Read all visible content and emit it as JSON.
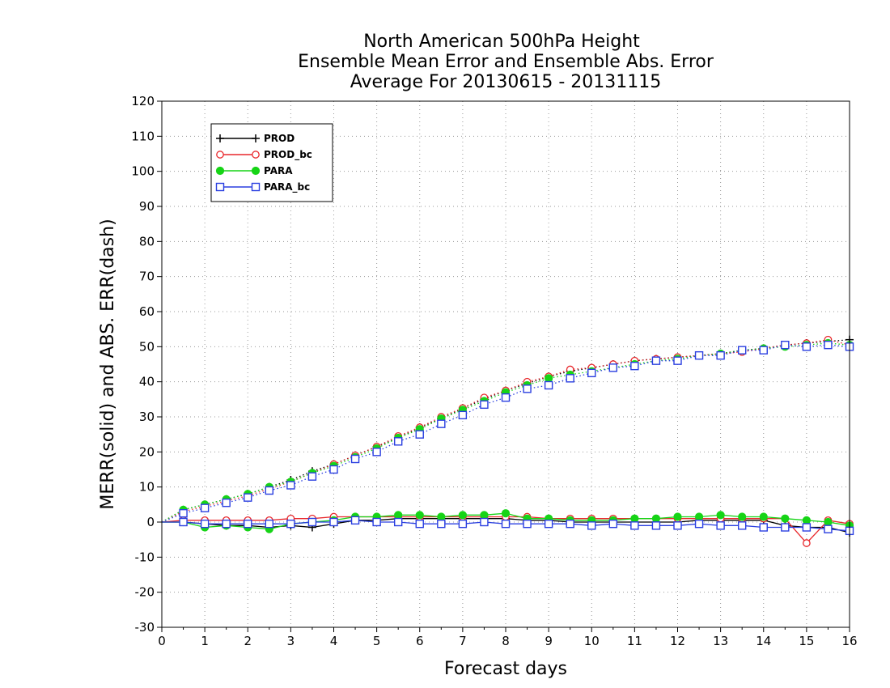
{
  "chart_data": {
    "type": "line",
    "title_lines": [
      "North American 500hPa Height",
      "Ensemble Mean Error and Ensemble Abs. Error",
      "Average For 20130615 - 20131115"
    ],
    "xlabel": "Forecast days",
    "ylabel": "MERR(solid) and ABS. ERR(dash)",
    "xlim": [
      0,
      16
    ],
    "ylim": [
      -30,
      120
    ],
    "xticks": [
      0,
      1,
      2,
      3,
      4,
      5,
      6,
      7,
      8,
      9,
      10,
      11,
      12,
      13,
      14,
      15,
      16
    ],
    "yticks": [
      -30,
      -20,
      -10,
      0,
      10,
      20,
      30,
      40,
      50,
      60,
      70,
      80,
      90,
      100,
      110,
      120
    ],
    "grid": true,
    "legend_position": "top-left",
    "x": [
      0,
      0.5,
      1,
      1.5,
      2,
      2.5,
      3,
      3.5,
      4,
      4.5,
      5,
      5.5,
      6,
      6.5,
      7,
      7.5,
      8,
      8.5,
      9,
      9.5,
      10,
      10.5,
      11,
      11.5,
      12,
      12.5,
      13,
      13.5,
      14,
      14.5,
      15,
      15.5,
      16
    ],
    "series": [
      {
        "name": "PROD",
        "color": "#000000",
        "marker": "plus",
        "merr": [
          0,
          0,
          -0.5,
          -1,
          -1,
          -1.5,
          -1,
          -1.5,
          -0.5,
          0.5,
          0.5,
          1,
          1,
          1,
          1,
          1,
          1,
          0.5,
          0.5,
          0,
          0,
          0,
          0,
          0,
          0,
          0.5,
          0.5,
          0.5,
          0.5,
          -1,
          -1.5,
          -1.5,
          -3
        ],
        "abserr": [
          0,
          3.5,
          5,
          6.5,
          8,
          10,
          12,
          14.5,
          16.5,
          19,
          21.5,
          24,
          27,
          29.5,
          32.5,
          35,
          37.5,
          39.5,
          41.5,
          43,
          44,
          45,
          46,
          46.5,
          47,
          47.5,
          48,
          49,
          49.5,
          50.5,
          51,
          51.5,
          52
        ]
      },
      {
        "name": "PROD_bc",
        "color": "#e8272b",
        "marker": "circle-open",
        "merr": [
          0,
          0.5,
          0.5,
          0.5,
          0.5,
          0.5,
          1,
          1,
          1.5,
          1.5,
          1.5,
          1.5,
          1.5,
          1.5,
          1.5,
          1.5,
          1.5,
          1.5,
          1,
          1,
          1,
          1,
          1,
          1,
          1,
          1,
          1,
          1,
          1,
          1,
          -6,
          0.5,
          -0.5
        ],
        "abserr": [
          0,
          3,
          4.5,
          6,
          7.5,
          9.5,
          11.5,
          14,
          16.5,
          19,
          21.5,
          24.5,
          27,
          30,
          32.5,
          35.5,
          37.5,
          40,
          41.5,
          43.5,
          44,
          45,
          46,
          46.5,
          47,
          47.5,
          48,
          48.5,
          49.5,
          50.5,
          51,
          52,
          50.5
        ]
      },
      {
        "name": "PARA",
        "color": "#16d416",
        "marker": "circle-filled",
        "merr": [
          0,
          0,
          -1.5,
          -1,
          -1.5,
          -2,
          -0.5,
          0,
          0.5,
          1.5,
          1.5,
          2,
          2,
          1.5,
          2,
          2,
          2.5,
          1,
          1,
          0.5,
          0.5,
          0.5,
          1,
          1,
          1.5,
          1.5,
          2,
          1.5,
          1.5,
          1,
          0.5,
          0,
          -1
        ],
        "abserr": [
          0,
          3.5,
          5,
          6.5,
          8,
          10,
          11.5,
          14,
          16,
          18.5,
          21,
          24,
          26.5,
          29.5,
          32,
          34.5,
          37,
          39,
          41,
          42,
          43,
          44,
          45,
          46,
          46.5,
          47.5,
          48,
          49,
          49.5,
          50,
          50.5,
          51,
          50.5
        ]
      },
      {
        "name": "PARA_bc",
        "color": "#2a3fe0",
        "marker": "square-open",
        "merr": [
          0,
          0,
          -0.5,
          -0.5,
          -0.5,
          -0.5,
          -0.5,
          0,
          0,
          0.5,
          0,
          0,
          -0.5,
          -0.5,
          -0.5,
          0,
          -0.5,
          -0.5,
          -0.5,
          -0.5,
          -1,
          -0.5,
          -1,
          -1,
          -1,
          -0.5,
          -1,
          -1,
          -1.5,
          -1.5,
          -1.5,
          -2,
          -2.5
        ],
        "abserr": [
          0,
          2.5,
          4,
          5.5,
          7,
          9,
          10.5,
          13,
          15,
          18,
          20,
          23,
          25,
          28,
          30.5,
          33.5,
          35.5,
          38,
          39,
          41,
          42.5,
          44,
          44.5,
          46,
          46,
          47.5,
          47.5,
          49,
          49,
          50.5,
          50,
          50.5,
          50
        ]
      }
    ]
  }
}
